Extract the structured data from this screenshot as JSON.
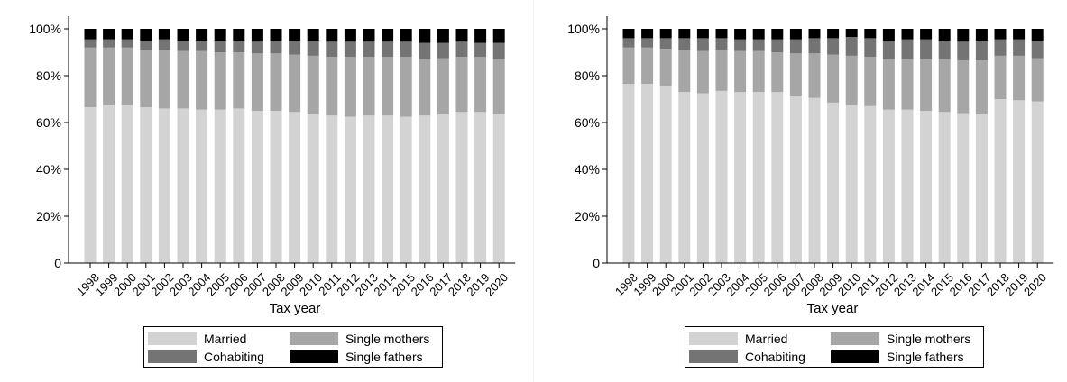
{
  "colors": {
    "married": "#d3d3d3",
    "single_mothers": "#a6a6a6",
    "cohabiting": "#747474",
    "single_fathers": "#000000"
  },
  "legend": {
    "items": [
      "Married",
      "Single mothers",
      "Cohabiting",
      "Single fathers"
    ]
  },
  "chart_data": [
    {
      "type": "bar",
      "stacked": true,
      "xlabel": "Tax year",
      "ylabel": "",
      "ylim": [
        0,
        100
      ],
      "yticks": [
        "0",
        "20%",
        "40%",
        "60%",
        "80%",
        "100%"
      ],
      "grid": false,
      "legend_position": "bottom",
      "categories": [
        "1998",
        "1999",
        "2000",
        "2001",
        "2002",
        "2003",
        "2004",
        "2005",
        "2006",
        "2007",
        "2008",
        "2009",
        "2010",
        "2011",
        "2012",
        "2013",
        "2014",
        "2015",
        "2016",
        "2017",
        "2018",
        "2019",
        "2020"
      ],
      "series": [
        {
          "name": "Married",
          "color_key": "married",
          "values": [
            66.5,
            67.5,
            67.5,
            66.5,
            66,
            66,
            65.5,
            65.5,
            66,
            65,
            65,
            64.5,
            63.5,
            63,
            62.5,
            63,
            63,
            62.5,
            63,
            63.5,
            64.5,
            64.5,
            63.5
          ]
        },
        {
          "name": "Single mothers",
          "color_key": "single_mothers",
          "values": [
            25.5,
            24.5,
            24.5,
            24.5,
            25,
            24.5,
            25,
            24.5,
            24,
            24.5,
            24.5,
            24.5,
            25,
            25,
            25.5,
            25,
            25,
            25.5,
            24,
            24,
            23.5,
            23.5,
            23.5
          ]
        },
        {
          "name": "Cohabiting",
          "color_key": "cohabiting",
          "values": [
            3.5,
            3.5,
            3.5,
            4,
            4.5,
            4.5,
            4.5,
            5,
            5,
            5,
            5.5,
            6,
            6.5,
            6.5,
            6.5,
            6.5,
            6.5,
            6.5,
            7,
            6.5,
            6.5,
            6,
            7
          ]
        },
        {
          "name": "Single fathers",
          "color_key": "single_fathers",
          "values": [
            4.5,
            4.5,
            4.5,
            5,
            4.5,
            5,
            5,
            5,
            5,
            5.5,
            5,
            5,
            5,
            5.5,
            5.5,
            5.5,
            5.5,
            5.5,
            6,
            6,
            5.5,
            6,
            6
          ]
        }
      ]
    },
    {
      "type": "bar",
      "stacked": true,
      "xlabel": "Tax year",
      "ylabel": "",
      "ylim": [
        0,
        100
      ],
      "yticks": [
        "0",
        "20%",
        "40%",
        "60%",
        "80%",
        "100%"
      ],
      "grid": false,
      "legend_position": "bottom",
      "categories": [
        "1998",
        "1999",
        "2000",
        "2001",
        "2002",
        "2003",
        "2004",
        "2005",
        "2006",
        "2007",
        "2008",
        "2009",
        "2010",
        "2011",
        "2012",
        "2013",
        "2014",
        "2015",
        "2016",
        "2017",
        "2018",
        "2019",
        "2020"
      ],
      "series": [
        {
          "name": "Married",
          "color_key": "married",
          "values": [
            76.5,
            76.5,
            75.5,
            73,
            72.5,
            73.5,
            73,
            73,
            73,
            71.5,
            70.5,
            68.5,
            67.5,
            67,
            65.5,
            65.5,
            65,
            64.5,
            64,
            63.5,
            70,
            69.5,
            69
          ]
        },
        {
          "name": "Single mothers",
          "color_key": "single_mothers",
          "values": [
            15.5,
            15.5,
            16,
            18,
            18,
            17.5,
            17.5,
            17.5,
            17,
            18,
            19,
            20.5,
            21,
            21,
            21.5,
            21.5,
            22,
            22.5,
            22.5,
            23,
            18.5,
            19,
            18.5
          ]
        },
        {
          "name": "Cohabiting",
          "color_key": "cohabiting",
          "values": [
            4,
            4,
            4.5,
            5,
            5.5,
            5,
            5,
            5,
            5.5,
            6,
            6.5,
            7,
            8,
            8,
            8,
            8.5,
            8.5,
            8,
            8,
            8.5,
            7,
            7,
            7.5
          ]
        },
        {
          "name": "Single fathers",
          "color_key": "single_fathers",
          "values": [
            4,
            4,
            4,
            4,
            4,
            4,
            4.5,
            4.5,
            4.5,
            4.5,
            4,
            4,
            3.5,
            4,
            5,
            4.5,
            4.5,
            5,
            5.5,
            5,
            4.5,
            4.5,
            5
          ]
        }
      ]
    }
  ]
}
